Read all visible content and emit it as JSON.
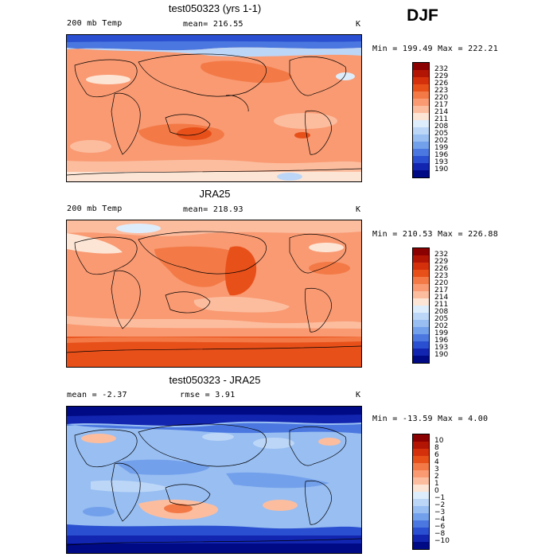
{
  "season": "DJF",
  "panels": [
    {
      "title": "test050323 (yrs 1-1)",
      "variable": "200 mb Temp",
      "mean_text": "mean= 216.55",
      "units": "K",
      "minmax": "Min = 199.49 Max = 222.21",
      "colorbar": {
        "labels": [
          "232",
          "229",
          "226",
          "223",
          "220",
          "217",
          "214",
          "211",
          "208",
          "205",
          "202",
          "199",
          "196",
          "193",
          "190"
        ],
        "colors": [
          "#8b0000",
          "#b31505",
          "#d4300c",
          "#e8501a",
          "#f37a47",
          "#f99a72",
          "#fcbd9f",
          "#fde5d5",
          "#deedfb",
          "#bcd6f7",
          "#98bef2",
          "#73a0eb",
          "#4b78e0",
          "#2a4fd0",
          "#1225b0",
          "#000a85"
        ]
      },
      "chart_data": {
        "type": "heatmap",
        "min": 199.49,
        "max": 222.21,
        "mean": 216.55
      }
    },
    {
      "title": "JRA25",
      "variable": "200 mb Temp",
      "mean_text": "mean= 218.93",
      "units": "K",
      "minmax": "Min = 210.53 Max = 226.88",
      "colorbar": {
        "labels": [
          "232",
          "229",
          "226",
          "223",
          "220",
          "217",
          "214",
          "211",
          "208",
          "205",
          "202",
          "199",
          "196",
          "193",
          "190"
        ],
        "colors": [
          "#8b0000",
          "#b31505",
          "#d4300c",
          "#e8501a",
          "#f37a47",
          "#f99a72",
          "#fcbd9f",
          "#fde5d5",
          "#deedfb",
          "#bcd6f7",
          "#98bef2",
          "#73a0eb",
          "#4b78e0",
          "#2a4fd0",
          "#1225b0",
          "#000a85"
        ]
      },
      "chart_data": {
        "type": "heatmap",
        "min": 210.53,
        "max": 226.88,
        "mean": 218.93
      }
    },
    {
      "title": "test050323 - JRA25",
      "mean_text": "mean =  -2.37",
      "rmse_text": "rmse =   3.91",
      "units": "K",
      "minmax": "Min = -13.59 Max =   4.00",
      "colorbar": {
        "labels": [
          "10",
          "8",
          "6",
          "4",
          "3",
          "2",
          "1",
          "0",
          "−1",
          "−2",
          "−3",
          "−4",
          "−6",
          "−8",
          "−10"
        ],
        "colors": [
          "#8b0000",
          "#b31505",
          "#d4300c",
          "#e8501a",
          "#f37a47",
          "#f99a72",
          "#fcbd9f",
          "#fde5d5",
          "#deedfb",
          "#bcd6f7",
          "#98bef2",
          "#73a0eb",
          "#4b78e0",
          "#2a4fd0",
          "#1225b0",
          "#000a85"
        ]
      },
      "chart_data": {
        "type": "heatmap",
        "min": -13.59,
        "max": 4.0,
        "mean": -2.37,
        "rmse": 3.91
      }
    }
  ]
}
